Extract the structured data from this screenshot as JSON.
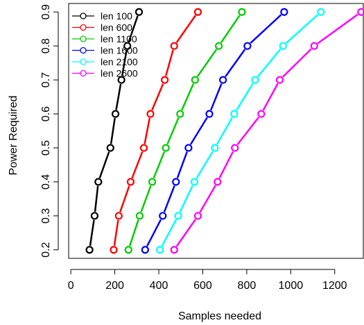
{
  "chart_data": {
    "type": "line",
    "title": "",
    "xlabel": "Samples needed",
    "ylabel": "Power Required",
    "xlim": [
      -10,
      1330
    ],
    "ylim": [
      0.175,
      0.925
    ],
    "x_ticks": [
      0,
      200,
      400,
      600,
      800,
      1000,
      1200
    ],
    "y_ticks": [
      0.2,
      0.3,
      0.4,
      0.5,
      0.6,
      0.7,
      0.8,
      0.9
    ],
    "grid": false,
    "legend_position": "top-left",
    "y": [
      0.2,
      0.3,
      0.4,
      0.5,
      0.6,
      0.7,
      0.8,
      0.9
    ],
    "series": [
      {
        "name": "len 100",
        "color": "#000000",
        "x": [
          85,
          108,
          125,
          180,
          203,
          230,
          257,
          310
        ]
      },
      {
        "name": "len 600",
        "color": "#ff0000",
        "x": [
          195,
          218,
          272,
          332,
          362,
          427,
          470,
          578
        ]
      },
      {
        "name": "len 1100",
        "color": "#00cd00",
        "x": [
          262,
          313,
          370,
          432,
          497,
          565,
          673,
          778
        ]
      },
      {
        "name": "len 1600",
        "color": "#0000ff",
        "x": [
          338,
          418,
          478,
          535,
          630,
          692,
          803,
          970
        ]
      },
      {
        "name": "len 2100",
        "color": "#00ffff",
        "x": [
          405,
          488,
          562,
          655,
          743,
          838,
          965,
          1137
        ]
      },
      {
        "name": "len 2600",
        "color": "#ff00ff",
        "x": [
          470,
          578,
          667,
          746,
          866,
          950,
          1107,
          1320
        ]
      }
    ]
  }
}
